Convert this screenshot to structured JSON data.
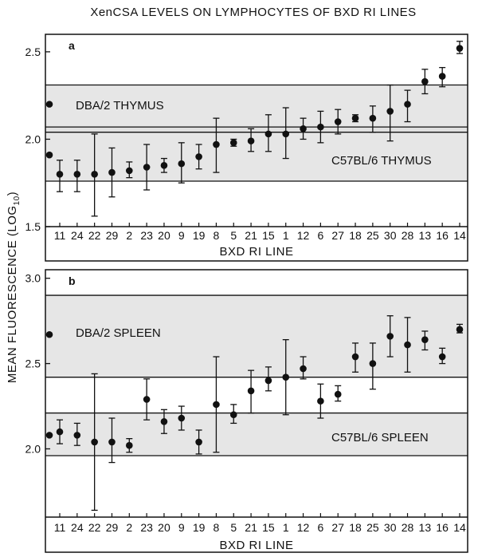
{
  "title": "XenCSA LEVELS ON LYMPHOCYTES OF BXD RI LINES",
  "ylabel": "MEAN FLUORESCENCE (LOG",
  "ylabel_sub": "10",
  "ylabel_end": ")",
  "chart_data": [
    {
      "type": "scatter",
      "panel": "a",
      "xlabel": "BXD RI LINE",
      "ylim": [
        1.5,
        2.6
      ],
      "yticks": [
        "1.5",
        "2.0",
        "2.5"
      ],
      "ytick_values": [
        1.5,
        2.0,
        2.5
      ],
      "categories": [
        "11",
        "24",
        "22",
        "29",
        "2",
        "23",
        "20",
        "9",
        "19",
        "8",
        "5",
        "21",
        "15",
        "1",
        "12",
        "6",
        "27",
        "18",
        "25",
        "30",
        "28",
        "13",
        "16",
        "14"
      ],
      "series": [
        {
          "points": [
            {
              "cat": "11",
              "mean": 1.8,
              "low": 1.7,
              "high": 1.88
            },
            {
              "cat": "24",
              "mean": 1.8,
              "low": 1.7,
              "high": 1.88
            },
            {
              "cat": "22",
              "mean": 1.8,
              "low": 1.56,
              "high": 2.03
            },
            {
              "cat": "29",
              "mean": 1.81,
              "low": 1.67,
              "high": 1.95
            },
            {
              "cat": "2",
              "mean": 1.82,
              "low": 1.78,
              "high": 1.87
            },
            {
              "cat": "23",
              "mean": 1.84,
              "low": 1.71,
              "high": 1.97
            },
            {
              "cat": "20",
              "mean": 1.85,
              "low": 1.81,
              "high": 1.89
            },
            {
              "cat": "9",
              "mean": 1.86,
              "low": 1.75,
              "high": 1.98
            },
            {
              "cat": "19",
              "mean": 1.9,
              "low": 1.83,
              "high": 1.97
            },
            {
              "cat": "8",
              "mean": 1.97,
              "low": 1.81,
              "high": 2.12
            },
            {
              "cat": "5",
              "mean": 1.98,
              "low": 1.96,
              "high": 2.0
            },
            {
              "cat": "21",
              "mean": 1.99,
              "low": 1.93,
              "high": 2.06
            },
            {
              "cat": "15",
              "mean": 2.03,
              "low": 1.93,
              "high": 2.14
            },
            {
              "cat": "1",
              "mean": 2.03,
              "low": 1.89,
              "high": 2.18
            },
            {
              "cat": "12",
              "mean": 2.06,
              "low": 2.0,
              "high": 2.12
            },
            {
              "cat": "6",
              "mean": 2.07,
              "low": 1.98,
              "high": 2.16
            },
            {
              "cat": "27",
              "mean": 2.1,
              "low": 2.03,
              "high": 2.17
            },
            {
              "cat": "18",
              "mean": 2.12,
              "low": 2.1,
              "high": 2.14
            },
            {
              "cat": "25",
              "mean": 2.12,
              "low": 2.04,
              "high": 2.19
            },
            {
              "cat": "30",
              "mean": 2.16,
              "low": 1.99,
              "high": 2.31
            },
            {
              "cat": "28",
              "mean": 2.2,
              "low": 2.1,
              "high": 2.28
            },
            {
              "cat": "13",
              "mean": 2.33,
              "low": 2.26,
              "high": 2.4
            },
            {
              "cat": "16",
              "mean": 2.36,
              "low": 2.3,
              "high": 2.41
            },
            {
              "cat": "14",
              "mean": 2.52,
              "low": 2.49,
              "high": 2.56
            }
          ]
        }
      ],
      "reference": [
        {
          "label": "DBA/2 THYMUS",
          "mean": 2.2,
          "band": [
            2.04,
            2.31
          ]
        },
        {
          "label": "C57BL/6 THYMUS",
          "mean": 1.91,
          "band": [
            1.76,
            2.07
          ]
        }
      ],
      "band_fill": "#dddddd"
    },
    {
      "type": "scatter",
      "panel": "b",
      "xlabel": "BXD RI LINE",
      "ylim": [
        1.6,
        3.05
      ],
      "yticks": [
        "2.0",
        "2.5",
        "3.0"
      ],
      "ytick_values": [
        2.0,
        2.5,
        3.0
      ],
      "categories": [
        "11",
        "24",
        "22",
        "29",
        "2",
        "23",
        "20",
        "9",
        "19",
        "8",
        "5",
        "21",
        "15",
        "1",
        "12",
        "6",
        "27",
        "18",
        "25",
        "30",
        "28",
        "13",
        "16",
        "14"
      ],
      "series": [
        {
          "points": [
            {
              "cat": "11",
              "mean": 2.1,
              "low": 2.03,
              "high": 2.17
            },
            {
              "cat": "24",
              "mean": 2.08,
              "low": 2.02,
              "high": 2.15
            },
            {
              "cat": "22",
              "mean": 2.04,
              "low": 1.64,
              "high": 2.44
            },
            {
              "cat": "29",
              "mean": 2.04,
              "low": 1.92,
              "high": 2.18
            },
            {
              "cat": "2",
              "mean": 2.02,
              "low": 1.98,
              "high": 2.06
            },
            {
              "cat": "23",
              "mean": 2.29,
              "low": 2.17,
              "high": 2.41
            },
            {
              "cat": "20",
              "mean": 2.16,
              "low": 2.09,
              "high": 2.23
            },
            {
              "cat": "9",
              "mean": 2.18,
              "low": 2.11,
              "high": 2.25
            },
            {
              "cat": "19",
              "mean": 2.04,
              "low": 1.97,
              "high": 2.11
            },
            {
              "cat": "8",
              "mean": 2.26,
              "low": 1.98,
              "high": 2.54
            },
            {
              "cat": "5",
              "mean": 2.2,
              "low": 2.15,
              "high": 2.26
            },
            {
              "cat": "21",
              "mean": 2.34,
              "low": 2.21,
              "high": 2.46
            },
            {
              "cat": "15",
              "mean": 2.4,
              "low": 2.34,
              "high": 2.48
            },
            {
              "cat": "1",
              "mean": 2.42,
              "low": 2.2,
              "high": 2.64
            },
            {
              "cat": "12",
              "mean": 2.47,
              "low": 2.41,
              "high": 2.54
            },
            {
              "cat": "6",
              "mean": 2.28,
              "low": 2.18,
              "high": 2.38
            },
            {
              "cat": "27",
              "mean": 2.32,
              "low": 2.28,
              "high": 2.37
            },
            {
              "cat": "18",
              "mean": 2.54,
              "low": 2.45,
              "high": 2.62
            },
            {
              "cat": "25",
              "mean": 2.5,
              "low": 2.35,
              "high": 2.62
            },
            {
              "cat": "30",
              "mean": 2.66,
              "low": 2.54,
              "high": 2.78
            },
            {
              "cat": "28",
              "mean": 2.61,
              "low": 2.45,
              "high": 2.77
            },
            {
              "cat": "13",
              "mean": 2.64,
              "low": 2.58,
              "high": 2.69
            },
            {
              "cat": "16",
              "mean": 2.54,
              "low": 2.5,
              "high": 2.59
            },
            {
              "cat": "14",
              "mean": 2.7,
              "low": 2.68,
              "high": 2.73
            }
          ]
        }
      ],
      "reference": [
        {
          "label": "DBA/2 SPLEEN",
          "mean": 2.67,
          "band": [
            2.42,
            2.9
          ]
        },
        {
          "label": "C57BL/6 SPLEEN",
          "mean": 2.08,
          "band": [
            1.96,
            2.21
          ]
        }
      ],
      "band_fill": "#dddddd"
    }
  ]
}
